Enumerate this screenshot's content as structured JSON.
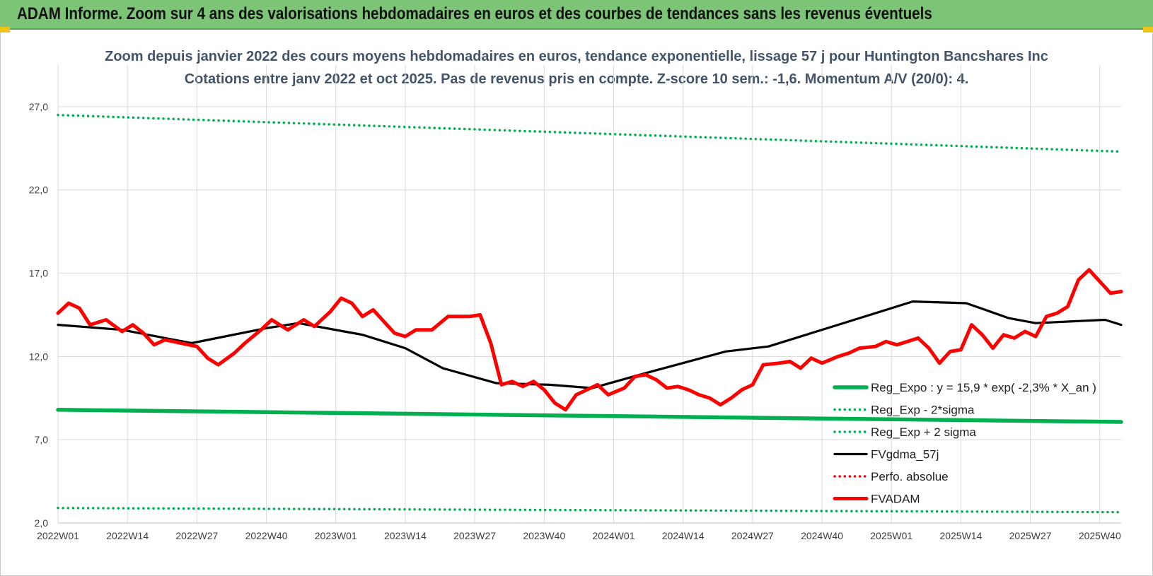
{
  "banner": {
    "title": "ADAM Informe. Zoom sur 4 ans des valorisations hebdomadaires en euros et des courbes de tendances sans les revenus éventuels"
  },
  "chart_data": {
    "type": "line",
    "title": "Zoom depuis janvier 2022 des cours moyens hebdomadaires en euros, tendance exponentielle, lissage 57 j pour Huntington Bancshares Inc",
    "subtitle": "Cotations entre janv 2022 et oct 2025. Pas de revenus pris en compte. Z-score 10 sem.: -1,6.  Momentum A/V (20/0): 4.",
    "xlabel": "",
    "ylabel": "",
    "ylim": [
      2.0,
      29.5
    ],
    "yticks": [
      "2,0",
      "7,0",
      "12,0",
      "17,0",
      "22,0",
      "27,0"
    ],
    "ytick_values": [
      2,
      7,
      12,
      17,
      22,
      27
    ],
    "xticks": [
      "2022W01",
      "2022W14",
      "2022W27",
      "2022W40",
      "2023W01",
      "2023W14",
      "2023W27",
      "2023W40",
      "2024W01",
      "2024W14",
      "2024W27",
      "2024W40",
      "2025W01",
      "2025W14",
      "2025W27",
      "2025W40"
    ],
    "week_count": 200,
    "grid": "horizontal-and-vertical",
    "legend_position": "right-inside",
    "series": [
      {
        "name": "Reg_Expo : y = 15,9 * exp( -2,3% *  X_an )",
        "style": "solid-thick",
        "color": "#00b050",
        "points": [
          [
            0,
            8.8
          ],
          [
            199,
            8.07
          ]
        ]
      },
      {
        "name": "Reg_Exp - 2*sigma",
        "style": "dotted",
        "color": "#00b050",
        "points": [
          [
            0,
            2.9
          ],
          [
            199,
            2.65
          ]
        ]
      },
      {
        "name": "Reg_Exp + 2 sigma",
        "style": "dotted",
        "color": "#00b050",
        "points": [
          [
            0,
            26.5
          ],
          [
            199,
            24.3
          ]
        ]
      },
      {
        "name": "FVgdma_57j",
        "style": "solid",
        "color": "#000000",
        "points": [
          [
            0,
            13.9
          ],
          [
            12,
            13.6
          ],
          [
            25,
            12.8
          ],
          [
            39,
            13.7
          ],
          [
            45,
            14.0
          ],
          [
            57,
            13.3
          ],
          [
            65,
            12.5
          ],
          [
            72,
            11.3
          ],
          [
            82,
            10.4
          ],
          [
            92,
            10.3
          ],
          [
            100,
            10.1
          ],
          [
            110,
            11.0
          ],
          [
            125,
            12.3
          ],
          [
            133,
            12.6
          ],
          [
            146,
            13.9
          ],
          [
            160,
            15.3
          ],
          [
            170,
            15.2
          ],
          [
            178,
            14.3
          ],
          [
            183,
            14.0
          ],
          [
            196,
            14.2
          ],
          [
            199,
            13.9
          ]
        ]
      },
      {
        "name": "Perfo. absolue",
        "style": "dotted",
        "color": "#ff0000",
        "points": []
      },
      {
        "name": "FVADAM",
        "style": "solid-thick",
        "color": "#ff0000",
        "points": [
          [
            0,
            14.6
          ],
          [
            2,
            15.2
          ],
          [
            4,
            14.9
          ],
          [
            6,
            13.9
          ],
          [
            9,
            14.2
          ],
          [
            12,
            13.5
          ],
          [
            14,
            13.9
          ],
          [
            16,
            13.4
          ],
          [
            18,
            12.7
          ],
          [
            20,
            13.0
          ],
          [
            23,
            12.8
          ],
          [
            26,
            12.6
          ],
          [
            28,
            11.9
          ],
          [
            30,
            11.5
          ],
          [
            33,
            12.2
          ],
          [
            35,
            12.8
          ],
          [
            38,
            13.6
          ],
          [
            40,
            14.2
          ],
          [
            43,
            13.6
          ],
          [
            46,
            14.2
          ],
          [
            48,
            13.8
          ],
          [
            51,
            14.7
          ],
          [
            53,
            15.5
          ],
          [
            55,
            15.2
          ],
          [
            57,
            14.4
          ],
          [
            59,
            14.8
          ],
          [
            61,
            14.1
          ],
          [
            63,
            13.4
          ],
          [
            65,
            13.2
          ],
          [
            67,
            13.6
          ],
          [
            70,
            13.6
          ],
          [
            73,
            14.4
          ],
          [
            75,
            14.4
          ],
          [
            77,
            14.4
          ],
          [
            79,
            14.5
          ],
          [
            81,
            12.8
          ],
          [
            83,
            10.3
          ],
          [
            85,
            10.5
          ],
          [
            87,
            10.2
          ],
          [
            89,
            10.5
          ],
          [
            91,
            10.0
          ],
          [
            93,
            9.2
          ],
          [
            95,
            8.8
          ],
          [
            97,
            9.7
          ],
          [
            99,
            10.0
          ],
          [
            101,
            10.3
          ],
          [
            103,
            9.7
          ],
          [
            106,
            10.1
          ],
          [
            108,
            10.8
          ],
          [
            110,
            10.9
          ],
          [
            112,
            10.6
          ],
          [
            114,
            10.1
          ],
          [
            116,
            10.2
          ],
          [
            118,
            10.0
          ],
          [
            120,
            9.7
          ],
          [
            122,
            9.5
          ],
          [
            124,
            9.1
          ],
          [
            126,
            9.5
          ],
          [
            128,
            10.0
          ],
          [
            130,
            10.3
          ],
          [
            132,
            11.5
          ],
          [
            135,
            11.6
          ],
          [
            137,
            11.7
          ],
          [
            139,
            11.3
          ],
          [
            141,
            11.9
          ],
          [
            143,
            11.6
          ],
          [
            146,
            12.0
          ],
          [
            148,
            12.2
          ],
          [
            150,
            12.5
          ],
          [
            153,
            12.6
          ],
          [
            155,
            12.9
          ],
          [
            157,
            12.7
          ],
          [
            159,
            12.9
          ],
          [
            161,
            13.1
          ],
          [
            163,
            12.5
          ],
          [
            165,
            11.6
          ],
          [
            167,
            12.3
          ],
          [
            169,
            12.4
          ],
          [
            171,
            13.9
          ],
          [
            173,
            13.3
          ],
          [
            175,
            12.5
          ],
          [
            177,
            13.3
          ],
          [
            179,
            13.1
          ],
          [
            181,
            13.5
          ],
          [
            183,
            13.2
          ],
          [
            185,
            14.4
          ],
          [
            187,
            14.6
          ],
          [
            189,
            15.0
          ],
          [
            191,
            16.6
          ],
          [
            193,
            17.2
          ],
          [
            195,
            16.5
          ],
          [
            197,
            15.8
          ],
          [
            199,
            15.9
          ]
        ]
      }
    ]
  }
}
